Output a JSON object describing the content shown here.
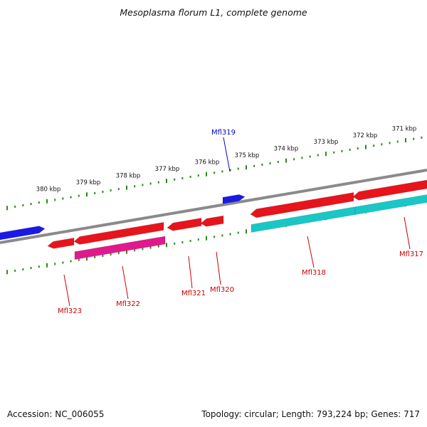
{
  "title": "Mesoplasma florum L1, complete genome",
  "footer": {
    "accession": "Accession: NC_006055",
    "summary": "Topology: circular; Length: 793,224 bp; Genes: 717"
  },
  "colors": {
    "backbone": "#8a8a8a",
    "ruler_tick": "#2a8a1a",
    "gene_forward": "#e8141c",
    "gene_reverse_blue": "#1a1ae6",
    "cds_cyan": "#19c7c7",
    "cds_magenta": "#e01a8c",
    "label_red": "#cc0000",
    "label_blue": "#0000cc"
  },
  "ruler": {
    "unit": "kbp",
    "labels": [
      "380 kbp",
      "379 kbp",
      "378 kbp",
      "377 kbp",
      "376 kbp",
      "375 kbp",
      "374 kbp",
      "373 kbp",
      "372 kbp",
      "371 kbp"
    ]
  },
  "genes": [
    {
      "name": "Mfl323",
      "color": "red"
    },
    {
      "name": "Mfl322",
      "color": "red"
    },
    {
      "name": "Mfl321",
      "color": "red"
    },
    {
      "name": "Mfl320",
      "color": "red"
    },
    {
      "name": "Mfl319",
      "color": "blue"
    },
    {
      "name": "Mfl318",
      "color": "red"
    },
    {
      "name": "Mfl317",
      "color": "red"
    }
  ]
}
